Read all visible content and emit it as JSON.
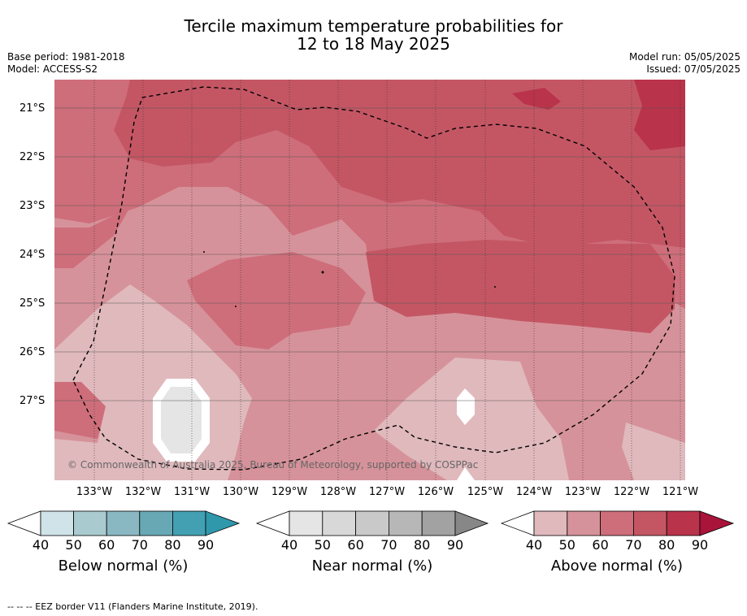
{
  "header": {
    "title_line1": "Tercile maximum temperature probabilities for",
    "title_line2": "12 to 18 May 2025",
    "base_period": "Base period: 1981-2018",
    "model": "Model: ACCESS-S2",
    "model_run": "Model run: 05/05/2025",
    "issued": "Issued: 07/05/2025"
  },
  "map": {
    "copyright": "© Commonwealth of Australia 2025, Bureau of Meteorology, supported by COSPPac",
    "lat_labels": [
      "21°S",
      "22°S",
      "23°S",
      "24°S",
      "25°S",
      "26°S",
      "27°S"
    ],
    "lon_labels": [
      "133°W",
      "132°W",
      "131°W",
      "130°W",
      "129°W",
      "128°W",
      "127°W",
      "126°W",
      "125°W",
      "124°W",
      "123°W",
      "122°W",
      "121°W"
    ],
    "footnote": "-- -- -- EEZ border V11 (Flanders Marine Institute, 2019)."
  },
  "chart_data": {
    "type": "heatmap",
    "title": "Tercile maximum temperature probabilities for 12 to 18 May 2025",
    "x_axis": {
      "ticks": [
        "133°W",
        "132°W",
        "131°W",
        "130°W",
        "129°W",
        "128°W",
        "127°W",
        "126°W",
        "125°W",
        "124°W",
        "123°W",
        "122°W",
        "121°W"
      ]
    },
    "y_axis": {
      "ticks": [
        "21°S",
        "22°S",
        "23°S",
        "24°S",
        "25°S",
        "26°S",
        "27°S"
      ]
    },
    "grid": true,
    "dominant_category": "Above normal",
    "colorbars": [
      {
        "label": "Below normal (%)",
        "ticks": [
          "40",
          "50",
          "60",
          "70",
          "80",
          "90"
        ],
        "colors": [
          "#ffffff",
          "#cfe3e8",
          "#a9cacf",
          "#8ab8c2",
          "#68a8b5",
          "#43a0b2",
          "#2f98ab"
        ]
      },
      {
        "label": "Near normal (%)",
        "ticks": [
          "40",
          "50",
          "60",
          "70",
          "80",
          "90"
        ],
        "colors": [
          "#ffffff",
          "#e5e5e5",
          "#d8d8d8",
          "#c9c9c9",
          "#b7b7b7",
          "#a2a2a2",
          "#878787"
        ]
      },
      {
        "label": "Above normal (%)",
        "ticks": [
          "40",
          "50",
          "60",
          "70",
          "80",
          "90"
        ],
        "colors": [
          "#ffffff",
          "#e0b9bd",
          "#d6929a",
          "#ce6e7a",
          "#c45664",
          "#b9334a",
          "#a8143a"
        ]
      }
    ]
  }
}
